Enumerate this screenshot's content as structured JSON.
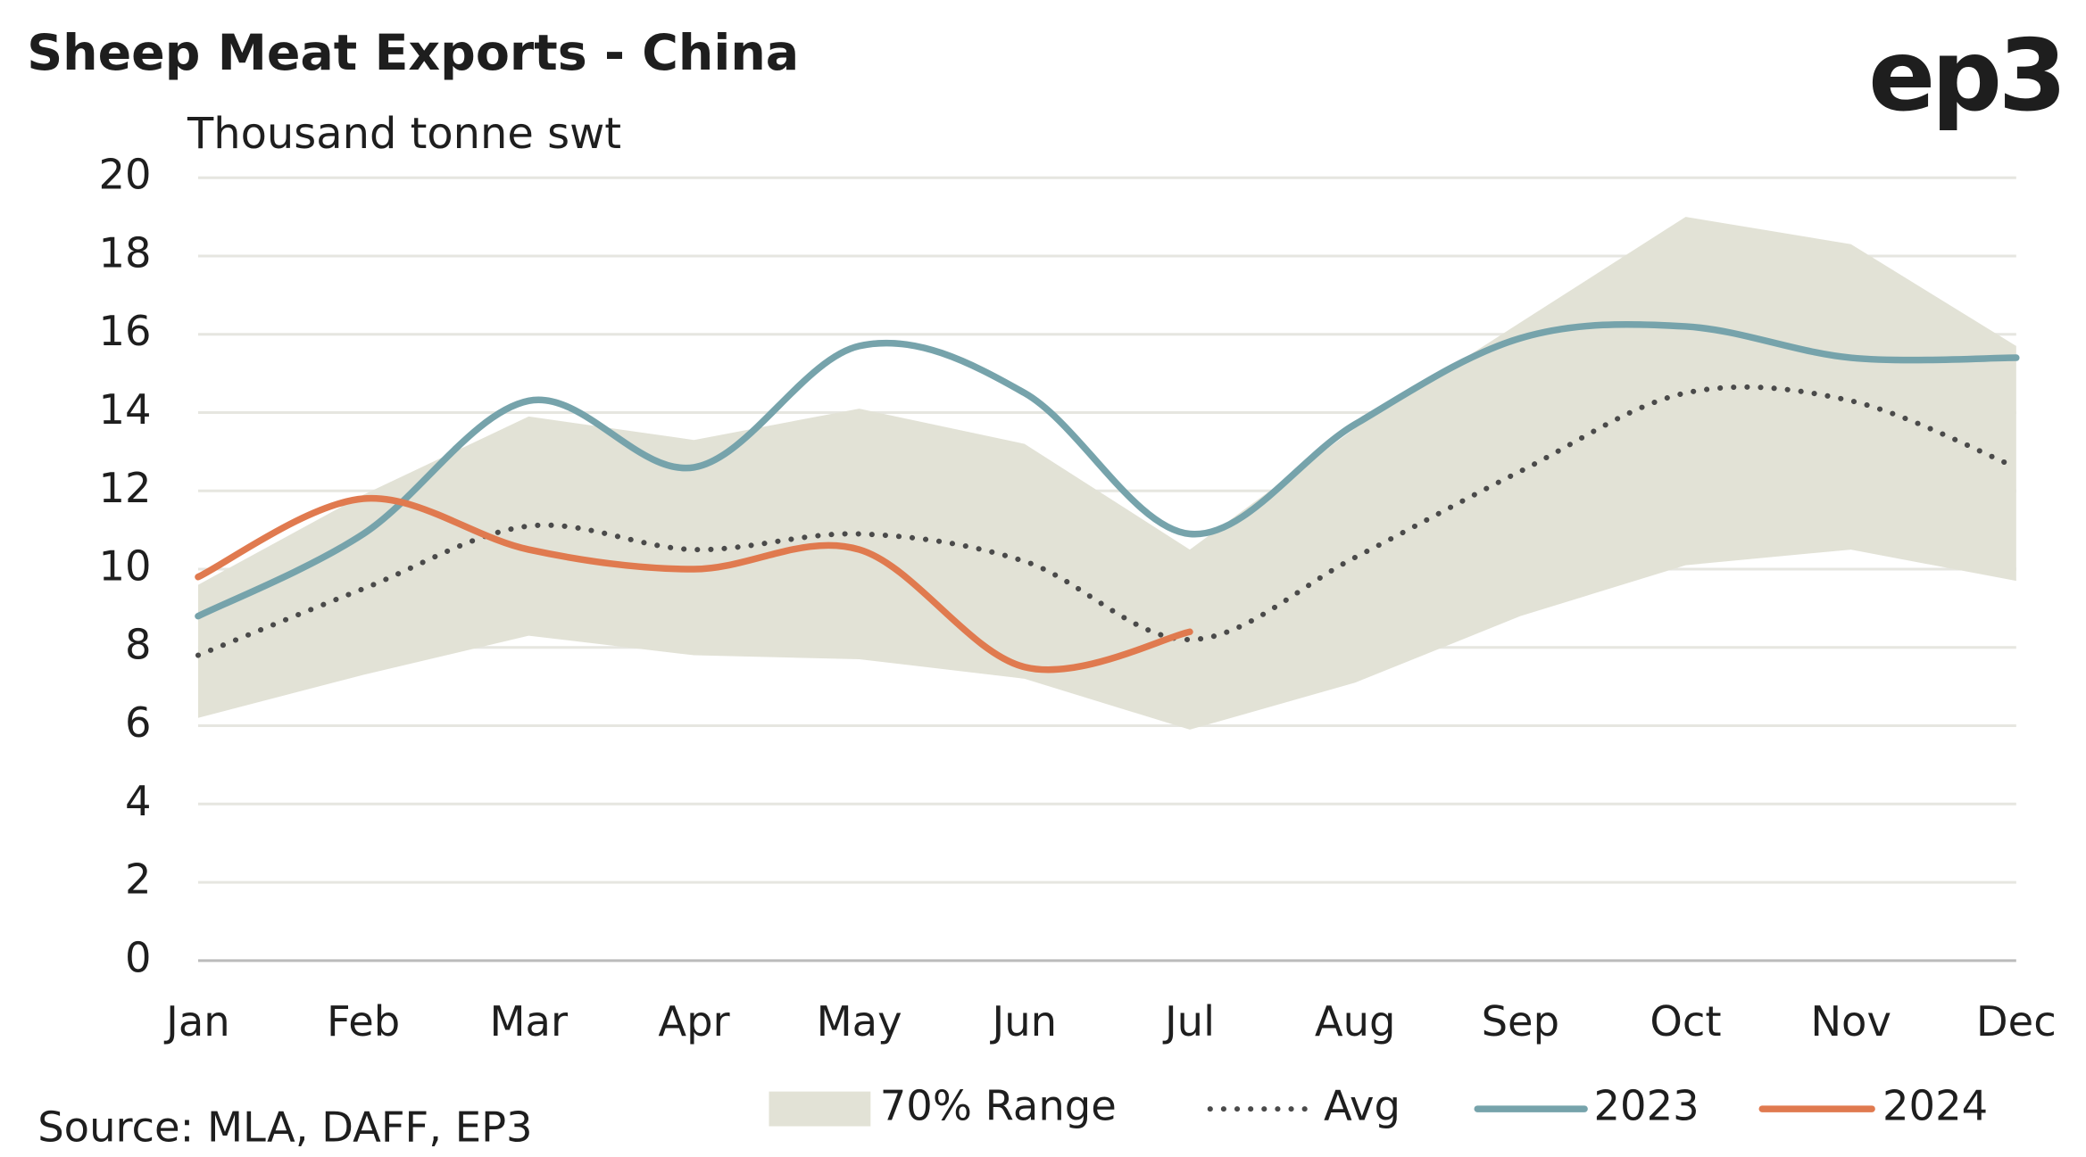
{
  "chart_data": {
    "type": "line",
    "title": "Sheep Meat Exports - China",
    "logo": "ep3",
    "y_label": "Thousand tonne swt",
    "source": "Source: MLA, DAFF, EP3",
    "categories": [
      "Jan",
      "Feb",
      "Mar",
      "Apr",
      "May",
      "Jun",
      "Jul",
      "Aug",
      "Sep",
      "Oct",
      "Nov",
      "Dec"
    ],
    "range": {
      "name": "70% Range",
      "color": "#e2e2d6",
      "low": [
        6.2,
        7.3,
        8.3,
        7.8,
        7.7,
        7.2,
        5.9,
        7.1,
        8.8,
        10.1,
        10.5,
        9.7
      ],
      "high": [
        9.6,
        11.9,
        13.9,
        13.3,
        14.1,
        13.2,
        10.5,
        13.6,
        16.3,
        19.0,
        18.3,
        15.7
      ]
    },
    "series": [
      {
        "name": "Avg",
        "color": "#4a4a4a",
        "dotted": true,
        "values": [
          7.8,
          9.5,
          11.1,
          10.5,
          10.9,
          10.2,
          8.2,
          10.3,
          12.5,
          14.5,
          14.3,
          12.6
        ]
      },
      {
        "name": "2023",
        "color": "#76a3ab",
        "values": [
          8.8,
          10.9,
          14.3,
          12.6,
          15.7,
          14.5,
          10.9,
          13.7,
          15.9,
          16.2,
          15.4,
          15.4
        ]
      },
      {
        "name": "2024",
        "color": "#e07a4f",
        "values": [
          9.8,
          11.8,
          10.5,
          10.0,
          10.5,
          7.5,
          8.4,
          null,
          null,
          null,
          null,
          null
        ]
      }
    ],
    "ylim": [
      0,
      20
    ],
    "yticks": [
      0,
      2,
      4,
      6,
      8,
      10,
      12,
      14,
      16,
      18,
      20
    ],
    "grid": true
  }
}
